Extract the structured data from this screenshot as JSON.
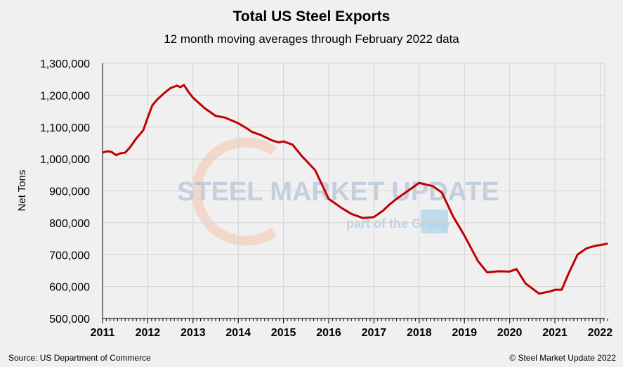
{
  "chart_data": {
    "type": "line",
    "title": "Total US Steel Exports",
    "subtitle": "12 month moving averages through February 2022 data",
    "xlabel": "",
    "ylabel": "Net Tons",
    "ylim": [
      500000,
      1300000
    ],
    "xlim": [
      2011,
      2022.17
    ],
    "yticks": [
      "500,000",
      "600,000",
      "700,000",
      "800,000",
      "900,000",
      "1,000,000",
      "1,100,000",
      "1,200,000",
      "1,300,000"
    ],
    "xticks": [
      "2011",
      "2012",
      "2013",
      "2014",
      "2015",
      "2016",
      "2017",
      "2018",
      "2019",
      "2020",
      "2021",
      "2022"
    ],
    "grid": true,
    "series": [
      {
        "color": "#c00000",
        "x": [
          2011.0,
          2011.1,
          2011.2,
          2011.3,
          2011.4,
          2011.5,
          2011.6,
          2011.75,
          2011.9,
          2012.0,
          2012.1,
          2012.2,
          2012.35,
          2012.5,
          2012.65,
          2012.72,
          2012.8,
          2012.9,
          2013.0,
          2013.25,
          2013.5,
          2013.7,
          2014.0,
          2014.2,
          2014.3,
          2014.5,
          2014.75,
          2014.9,
          2015.0,
          2015.2,
          2015.4,
          2015.7,
          2016.0,
          2016.3,
          2016.5,
          2016.75,
          2017.0,
          2017.2,
          2017.35,
          2017.5,
          2017.8,
          2018.0,
          2018.3,
          2018.5,
          2018.75,
          2019.0,
          2019.3,
          2019.5,
          2019.75,
          2020.0,
          2020.15,
          2020.35,
          2020.65,
          2020.9,
          2021.0,
          2021.15,
          2021.3,
          2021.5,
          2021.7,
          2021.9,
          2022.0,
          2022.17
        ],
        "values": [
          1020000,
          1024000,
          1022000,
          1012000,
          1018000,
          1020000,
          1035000,
          1065000,
          1090000,
          1130000,
          1168000,
          1185000,
          1205000,
          1222000,
          1230000,
          1225000,
          1232000,
          1210000,
          1192000,
          1160000,
          1135000,
          1130000,
          1112000,
          1095000,
          1085000,
          1075000,
          1058000,
          1052000,
          1055000,
          1045000,
          1010000,
          965000,
          875000,
          845000,
          828000,
          815000,
          818000,
          838000,
          858000,
          875000,
          905000,
          925000,
          915000,
          895000,
          820000,
          760000,
          680000,
          645000,
          648000,
          647000,
          655000,
          610000,
          578000,
          585000,
          590000,
          590000,
          640000,
          700000,
          720000,
          728000,
          730000,
          735000
        ]
      }
    ],
    "source": "Source: US Department of Commerce",
    "copyright": "© Steel Market Update 2022",
    "watermark": "STEEL MARKET UPDATE part of the CRU Group"
  }
}
